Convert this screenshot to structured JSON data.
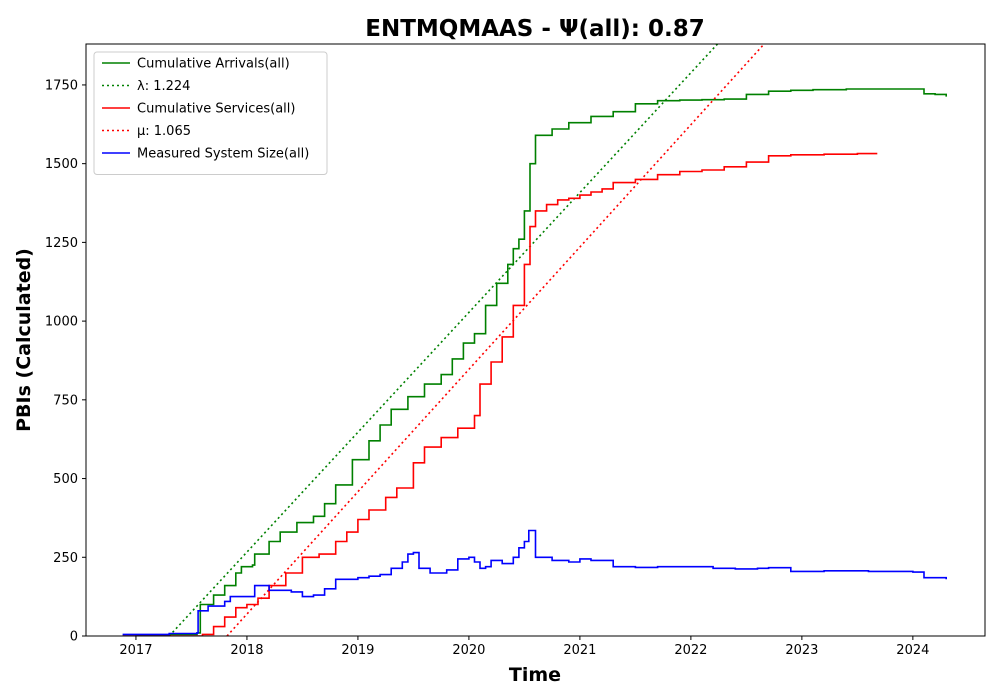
{
  "chart_data": {
    "type": "line",
    "title": "ENTMQMAAS -  Ψ(all): 0.87",
    "xlabel": "Time",
    "ylabel": "PBIs (Calculated)",
    "xlim": [
      2016.55,
      2024.65
    ],
    "ylim": [
      0,
      1880
    ],
    "xticks": [
      2017,
      2018,
      2019,
      2020,
      2021,
      2022,
      2023,
      2024
    ],
    "xtick_labels": [
      "2017",
      "2018",
      "2019",
      "2020",
      "2021",
      "2022",
      "2023",
      "2024"
    ],
    "yticks": [
      0,
      250,
      500,
      750,
      1000,
      1250,
      1500,
      1750
    ],
    "ytick_labels": [
      "0",
      "250",
      "500",
      "750",
      "1000",
      "1250",
      "1500",
      "1750"
    ],
    "grid": false,
    "legend_position": "top-left",
    "series": [
      {
        "name": "Cumulative Arrivals(all)",
        "color": "#008000",
        "style": "solid",
        "x": [
          2016.88,
          2017.0,
          2017.3,
          2017.55,
          2017.58,
          2017.7,
          2017.8,
          2017.9,
          2017.95,
          2018.05,
          2018.07,
          2018.2,
          2018.3,
          2018.45,
          2018.6,
          2018.7,
          2018.8,
          2018.95,
          2019.1,
          2019.2,
          2019.3,
          2019.45,
          2019.6,
          2019.75,
          2019.85,
          2019.95,
          2020.05,
          2020.15,
          2020.25,
          2020.35,
          2020.4,
          2020.45,
          2020.5,
          2020.55,
          2020.6,
          2020.75,
          2020.9,
          2021.1,
          2021.3,
          2021.5,
          2021.7,
          2021.9,
          2022.1,
          2022.3,
          2022.5,
          2022.7,
          2022.9,
          2023.1,
          2023.4,
          2023.7,
          2024.0,
          2024.1,
          2024.2,
          2024.3
        ],
        "y": [
          0,
          2,
          5,
          10,
          100,
          130,
          160,
          200,
          220,
          225,
          260,
          300,
          330,
          360,
          380,
          420,
          480,
          560,
          620,
          670,
          720,
          760,
          800,
          830,
          880,
          930,
          960,
          1050,
          1120,
          1180,
          1230,
          1260,
          1350,
          1500,
          1590,
          1610,
          1630,
          1650,
          1665,
          1690,
          1700,
          1702,
          1703,
          1705,
          1720,
          1730,
          1733,
          1735,
          1737,
          1737,
          1737,
          1722,
          1720,
          1713
        ]
      },
      {
        "name": "λ: 1.224",
        "color": "#008000",
        "style": "dotted",
        "x": [
          2017.3,
          2022.24
        ],
        "y": [
          0,
          1880
        ]
      },
      {
        "name": "Cumulative Services(all)",
        "color": "#ff0000",
        "style": "solid",
        "x": [
          2016.88,
          2017.3,
          2017.6,
          2017.7,
          2017.8,
          2017.9,
          2018.0,
          2018.1,
          2018.2,
          2018.35,
          2018.5,
          2018.65,
          2018.8,
          2018.9,
          2019.0,
          2019.1,
          2019.25,
          2019.35,
          2019.5,
          2019.6,
          2019.75,
          2019.9,
          2020.05,
          2020.1,
          2020.2,
          2020.3,
          2020.4,
          2020.5,
          2020.55,
          2020.6,
          2020.7,
          2020.8,
          2020.9,
          2021.0,
          2021.1,
          2021.2,
          2021.3,
          2021.5,
          2021.7,
          2021.9,
          2022.1,
          2022.3,
          2022.5,
          2022.7,
          2022.9,
          2023.2,
          2023.5,
          2023.68
        ],
        "y": [
          0,
          0,
          5,
          30,
          60,
          90,
          100,
          120,
          160,
          200,
          250,
          260,
          300,
          330,
          370,
          400,
          440,
          470,
          550,
          600,
          630,
          660,
          700,
          800,
          870,
          950,
          1050,
          1180,
          1300,
          1350,
          1370,
          1385,
          1390,
          1400,
          1410,
          1420,
          1440,
          1450,
          1465,
          1475,
          1480,
          1490,
          1505,
          1525,
          1528,
          1530,
          1532,
          1532
        ]
      },
      {
        "name": "μ: 1.065",
        "color": "#ff0000",
        "style": "dotted",
        "x": [
          2017.82,
          2022.66
        ],
        "y": [
          0,
          1880
        ]
      },
      {
        "name": "Measured System Size(all)",
        "color": "#0000ff",
        "style": "solid",
        "x": [
          2016.88,
          2017.3,
          2017.55,
          2017.56,
          2017.65,
          2017.8,
          2017.85,
          2018.05,
          2018.07,
          2018.2,
          2018.4,
          2018.5,
          2018.6,
          2018.7,
          2018.8,
          2019.0,
          2019.1,
          2019.2,
          2019.3,
          2019.4,
          2019.45,
          2019.5,
          2019.55,
          2019.65,
          2019.8,
          2019.9,
          2020.0,
          2020.05,
          2020.1,
          2020.15,
          2020.2,
          2020.3,
          2020.4,
          2020.45,
          2020.5,
          2020.54,
          2020.6,
          2020.75,
          2020.9,
          2021.0,
          2021.1,
          2021.3,
          2021.5,
          2021.7,
          2022.0,
          2022.2,
          2022.4,
          2022.6,
          2022.7,
          2022.9,
          2023.2,
          2023.6,
          2024.0,
          2024.1,
          2024.3
        ],
        "y": [
          5,
          8,
          10,
          80,
          95,
          110,
          125,
          125,
          160,
          145,
          140,
          125,
          130,
          150,
          180,
          185,
          190,
          195,
          215,
          235,
          260,
          265,
          215,
          200,
          210,
          245,
          250,
          235,
          215,
          220,
          240,
          230,
          250,
          280,
          300,
          335,
          250,
          240,
          235,
          245,
          240,
          220,
          218,
          220,
          220,
          215,
          213,
          215,
          217,
          205,
          207,
          205,
          203,
          185,
          180
        ]
      }
    ]
  }
}
